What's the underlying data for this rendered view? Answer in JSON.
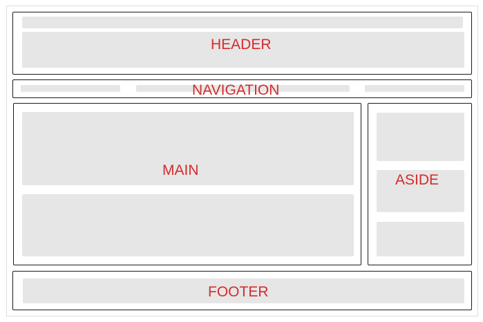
{
  "sections": {
    "header": "HEADER",
    "navigation": "NAVIGATION",
    "main": "MAIN",
    "aside": "ASIDE",
    "footer": "FOOTER"
  },
  "colors": {
    "label": "#d42b2b",
    "placeholder": "#e6e6e6",
    "border": "#1a1a1a"
  }
}
